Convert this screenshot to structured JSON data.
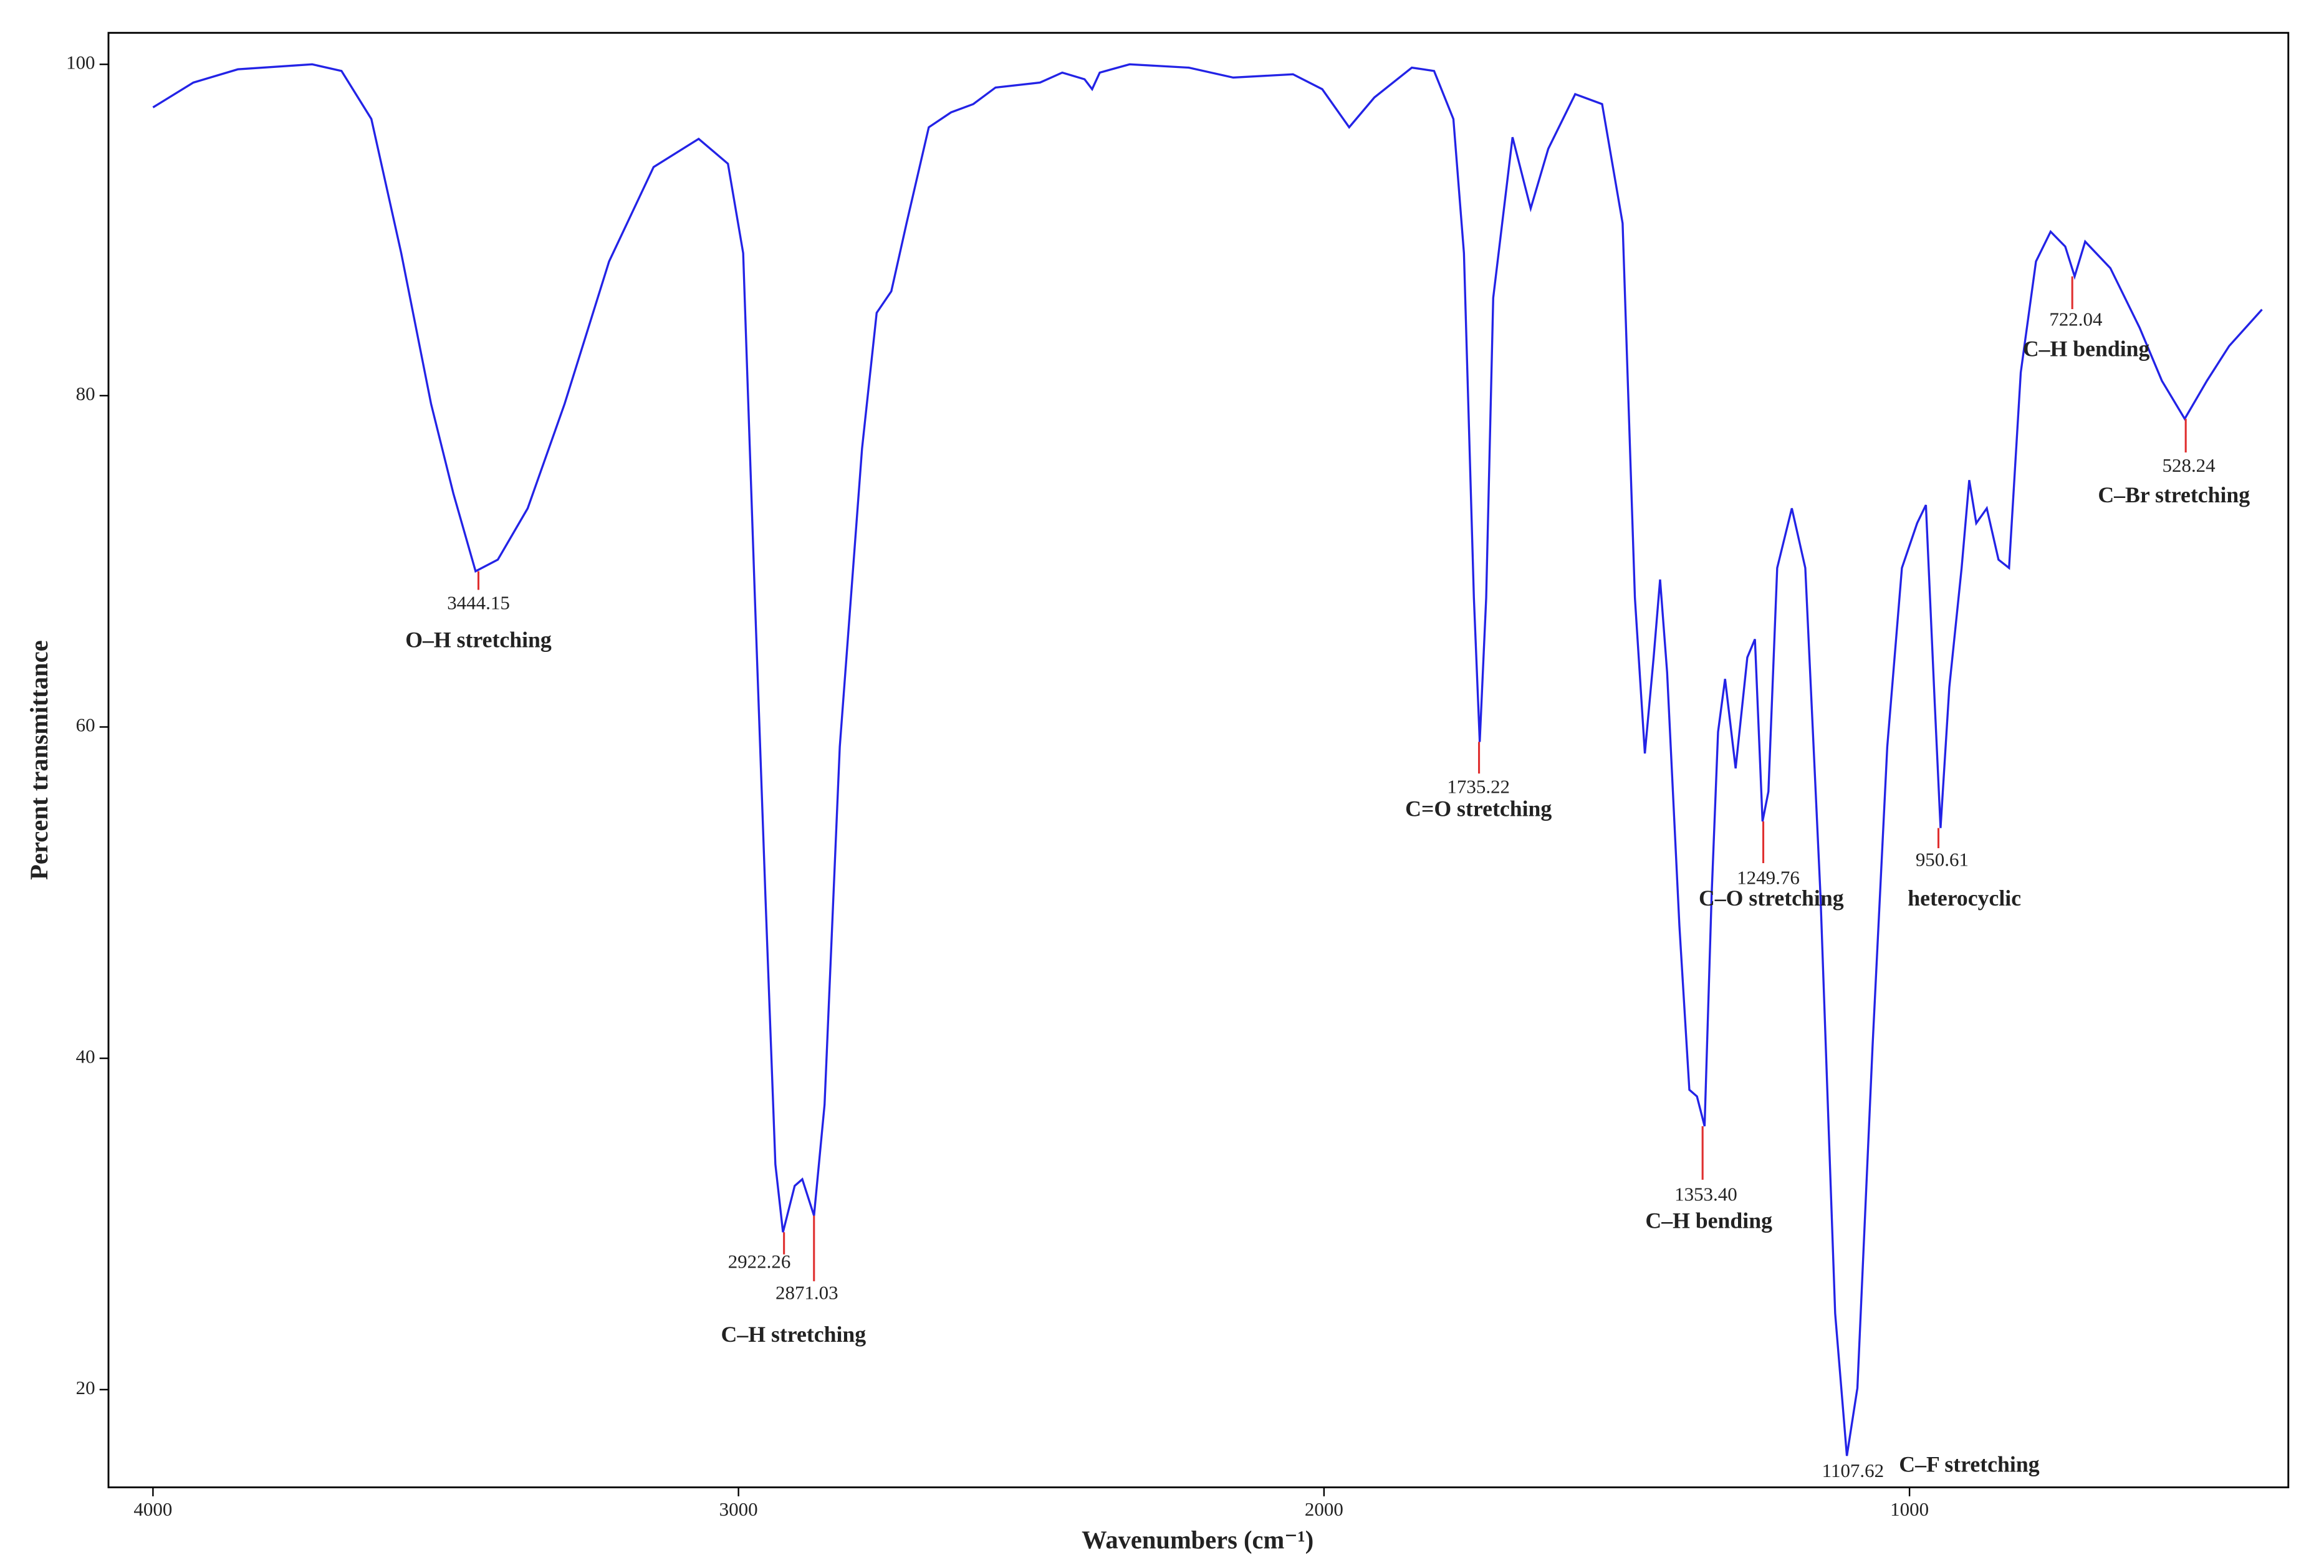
{
  "chart_data": {
    "type": "line",
    "x_label": "Wavenumbers (cm⁻¹)",
    "y_label": "Percent transmittance",
    "color": "#2323e6",
    "peak_color": "#e03030",
    "xlim": [
      4076,
      353
    ],
    "ylim": [
      14.1,
      101.9
    ],
    "xticks": [
      4000,
      3000,
      2000,
      1000
    ],
    "yticks": [
      20,
      40,
      60,
      80,
      100
    ],
    "x": [
      4000,
      3931,
      3855,
      3728,
      3678,
      3627,
      3576,
      3525,
      3487,
      3449,
      3411,
      3360,
      3297,
      3221,
      3145,
      3068,
      3018,
      2992,
      2972,
      2954,
      2937,
      2924,
      2904,
      2891,
      2871,
      2853,
      2827,
      2789,
      2764,
      2739,
      2713,
      2675,
      2637,
      2599,
      2561,
      2485,
      2447,
      2409,
      2396,
      2383,
      2332,
      2231,
      2155,
      2053,
      2003,
      1957,
      1914,
      1850,
      1812,
      1779,
      1761,
      1744,
      1734,
      1723,
      1711,
      1678,
      1647,
      1617,
      1571,
      1525,
      1490,
      1469,
      1452,
      1437,
      1426,
      1414,
      1393,
      1376,
      1363,
      1350,
      1338,
      1327,
      1315,
      1297,
      1277,
      1264,
      1251,
      1241,
      1226,
      1201,
      1178,
      1152,
      1127,
      1107,
      1089,
      1063,
      1038,
      1013,
      987,
      972,
      957,
      947,
      932,
      911,
      898,
      886,
      868,
      848,
      830,
      810,
      784,
      759,
      734,
      718,
      700,
      657,
      607,
      569,
      530,
      492,
      454,
      398
    ],
    "values": [
      97.4,
      98.9,
      99.7,
      100,
      99.6,
      96.7,
      88.6,
      79.5,
      74.1,
      69.4,
      70.1,
      73.2,
      79.5,
      88.1,
      93.8,
      95.5,
      94.0,
      88.6,
      67.8,
      49.8,
      33.6,
      29.5,
      32.3,
      32.7,
      30.5,
      37.2,
      58.8,
      76.8,
      85.0,
      86.3,
      90.4,
      96.2,
      97.1,
      97.6,
      98.6,
      98.9,
      99.5,
      99.1,
      98.5,
      99.5,
      100,
      99.8,
      99.2,
      99.4,
      98.5,
      96.2,
      98.0,
      99.8,
      99.6,
      96.7,
      88.6,
      67.8,
      59.1,
      67.8,
      85.9,
      95.6,
      91.3,
      94.9,
      98.2,
      97.6,
      90.4,
      67.8,
      58.4,
      64.2,
      68.9,
      63.3,
      48.0,
      38.1,
      37.7,
      35.9,
      49.8,
      59.7,
      62.9,
      57.5,
      64.2,
      65.3,
      54.3,
      56.1,
      69.6,
      73.2,
      69.6,
      49.8,
      24.6,
      16.0,
      20.1,
      40.8,
      58.8,
      69.6,
      72.3,
      73.4,
      61.5,
      53.9,
      62.4,
      69.6,
      74.9,
      72.3,
      73.2,
      70.1,
      69.6,
      81.4,
      88.1,
      89.9,
      89.0,
      87.2,
      89.3,
      87.7,
      84.1,
      80.9,
      78.6,
      80.9,
      83.0,
      85.2
    ],
    "peaks": [
      {
        "x": 3444.15,
        "y": 69.4,
        "label": "3444.15"
      },
      {
        "x": 2922.26,
        "y": 29.5,
        "label": "2922.26"
      },
      {
        "x": 2871.03,
        "y": 30.5,
        "label": "2871.03"
      },
      {
        "x": 1735.22,
        "y": 59.1,
        "label": "1735.22"
      },
      {
        "x": 1353.4,
        "y": 35.9,
        "label": "1353.40"
      },
      {
        "x": 1249.76,
        "y": 54.3,
        "label": "1249.76"
      },
      {
        "x": 1107.62,
        "y": 16.0,
        "label": "1107.62"
      },
      {
        "x": 950.61,
        "y": 53.9,
        "label": "950.61"
      },
      {
        "x": 722.04,
        "y": 87.2,
        "label": "722.04"
      },
      {
        "x": 528.24,
        "y": 78.6,
        "label": "528.24"
      }
    ],
    "assignments": [
      "O–H stretching",
      "C–H stretching",
      "C=O stretching",
      "C–H bending",
      "C–O stretching",
      "C–F stretching",
      "heterocyclic",
      "C–H bending",
      "C–Br stretching"
    ]
  }
}
